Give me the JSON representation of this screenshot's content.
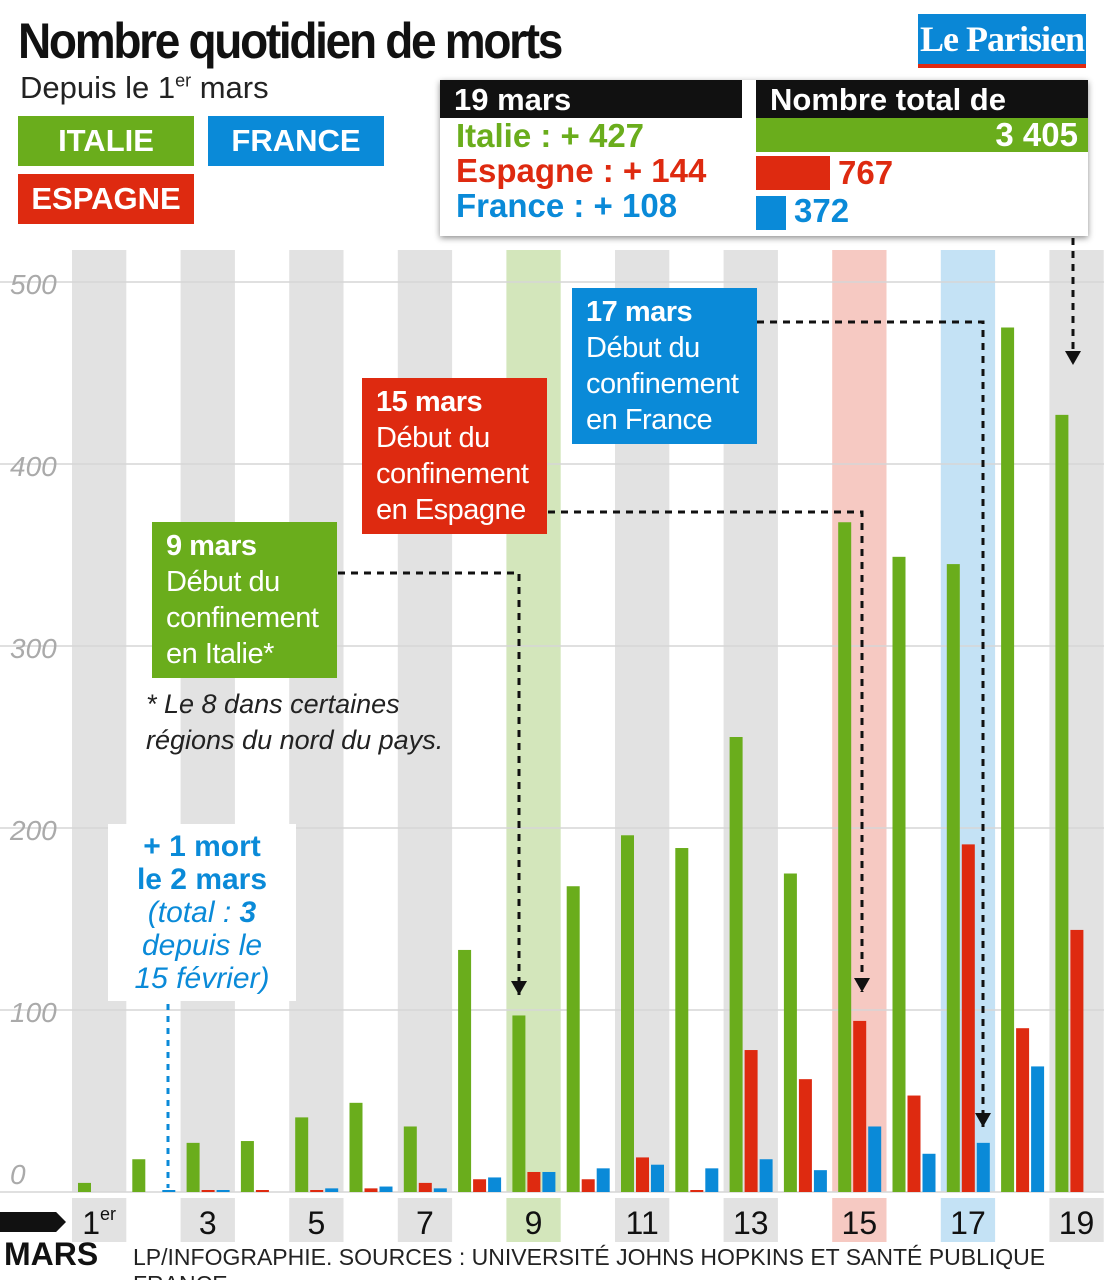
{
  "header": {
    "title": "Nombre quotidien de morts",
    "subtitle_pre": "Depuis le 1",
    "subtitle_sup": "er",
    "subtitle_post": " mars",
    "logo": "Le Parisien"
  },
  "legend": [
    {
      "label": "ITALIE",
      "color": "#6aad1c"
    },
    {
      "label": "FRANCE",
      "color": "#0a8ad8"
    },
    {
      "label": "ESPAGNE",
      "color": "#de2a10"
    }
  ],
  "summary": {
    "date": "19 mars",
    "italie": "Italie : + 427",
    "espagne": "Espagne : + 144",
    "france": "France : + 108",
    "total_title": "Nombre total de morts",
    "totals": [
      {
        "country": "Italie",
        "value": "3 405",
        "num": 3405
      },
      {
        "country": "Espagne",
        "value": "767",
        "num": 767
      },
      {
        "country": "France",
        "value": "372",
        "num": 372
      }
    ]
  },
  "annotations": {
    "italie": {
      "date": "9 mars",
      "text": [
        "Début du",
        "confinement",
        "en Italie*"
      ]
    },
    "espagne": {
      "date": "15 mars",
      "text": [
        "Début du",
        "confinement",
        "en Espagne"
      ]
    },
    "france": {
      "date": "17 mars",
      "text": [
        "Début du",
        "confinement",
        "en France"
      ]
    },
    "note": [
      "* Le 8 dans certaines",
      "régions du nord du pays."
    ],
    "first": {
      "l1": "+ 1 mort",
      "l2": "le 2 mars",
      "l3": "(total : ",
      "l3b": "3",
      "l4": "depuis le",
      "l5": "15 février)"
    }
  },
  "footer": {
    "month": "MARS",
    "source": "LP/INFOGRAPHIE. SOURCES : UNIVERSITÉ JOHNS HOPKINS ET SANTÉ PUBLIQUE FRANCE."
  },
  "chart_data": {
    "type": "bar",
    "title": "Nombre quotidien de morts",
    "xlabel": "Mars",
    "ylabel": "",
    "ylim": [
      0,
      500
    ],
    "yticks": [
      "0",
      "100",
      "200",
      "300",
      "400",
      "500"
    ],
    "categories": [
      "1er",
      "2",
      "3",
      "4",
      "5",
      "6",
      "7",
      "8",
      "9",
      "10",
      "11",
      "12",
      "13",
      "14",
      "15",
      "16",
      "17",
      "18",
      "19"
    ],
    "xtick_labels": [
      "1er",
      "",
      "3",
      "",
      "5",
      "",
      "7",
      "",
      "9",
      "",
      "11",
      "",
      "13",
      "",
      "15",
      "",
      "17",
      "",
      "19"
    ],
    "series": [
      {
        "name": "Italie",
        "color": "#6aad1c",
        "values": [
          5,
          18,
          27,
          28,
          41,
          49,
          36,
          133,
          97,
          168,
          196,
          189,
          250,
          175,
          368,
          349,
          345,
          475,
          427
        ]
      },
      {
        "name": "Espagne",
        "color": "#de2a10",
        "values": [
          0,
          0,
          1,
          1,
          1,
          2,
          5,
          7,
          11,
          7,
          19,
          1,
          78,
          62,
          94,
          53,
          191,
          90,
          144
        ]
      },
      {
        "name": "France",
        "color": "#0a8ad8",
        "values": [
          0,
          1,
          1,
          0,
          2,
          3,
          2,
          8,
          11,
          13,
          15,
          13,
          18,
          12,
          36,
          21,
          27,
          69,
          null
        ]
      }
    ]
  }
}
